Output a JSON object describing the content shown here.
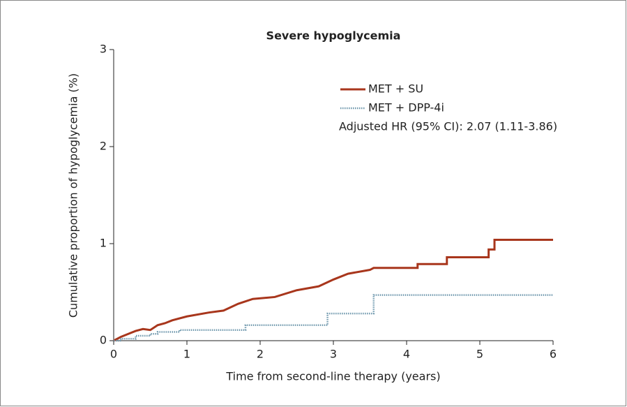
{
  "chart_data": {
    "type": "line",
    "title": "Severe hypoglycemia",
    "xlabel": "Time from second-line therapy (years)",
    "ylabel": "Cumulative proportion of hypoglycemia (%)",
    "annotation": "Adjusted HR (95% CI): 2.07 (1.11-3.86)",
    "xlim": [
      0,
      6
    ],
    "xticks": [
      0,
      1,
      2,
      3,
      4,
      5,
      6
    ],
    "ylim": [
      0,
      3
    ],
    "yticks": [
      0,
      1,
      2,
      3
    ],
    "grid": false,
    "series": [
      {
        "name": "MET + SU",
        "color": "#a8361c",
        "style": "solid",
        "x": [
          0,
          0.1,
          0.2,
          0.3,
          0.4,
          0.5,
          0.6,
          0.7,
          0.8,
          1.0,
          1.3,
          1.5,
          1.7,
          1.9,
          2.2,
          2.5,
          2.8,
          3.0,
          3.2,
          3.5,
          3.55,
          4.15,
          4.15,
          4.55,
          4.55,
          5.12,
          5.12,
          5.2,
          5.2,
          6
        ],
        "values": [
          0,
          0.04,
          0.07,
          0.1,
          0.12,
          0.11,
          0.16,
          0.18,
          0.21,
          0.25,
          0.29,
          0.31,
          0.38,
          0.43,
          0.45,
          0.52,
          0.56,
          0.63,
          0.69,
          0.73,
          0.75,
          0.75,
          0.79,
          0.79,
          0.86,
          0.86,
          0.94,
          0.94,
          1.04,
          1.04
        ]
      },
      {
        "name": "MET + DPP-4i",
        "color": "#6f98ad",
        "style": "dotted",
        "x": [
          0,
          0.1,
          0.1,
          0.3,
          0.3,
          0.5,
          0.5,
          0.6,
          0.6,
          0.9,
          0.9,
          1.8,
          1.8,
          2.92,
          2.92,
          3.55,
          3.55,
          6
        ],
        "values": [
          0,
          0,
          0.02,
          0.02,
          0.05,
          0.05,
          0.07,
          0.07,
          0.09,
          0.09,
          0.11,
          0.11,
          0.16,
          0.16,
          0.28,
          0.28,
          0.47,
          0.47
        ]
      }
    ]
  }
}
